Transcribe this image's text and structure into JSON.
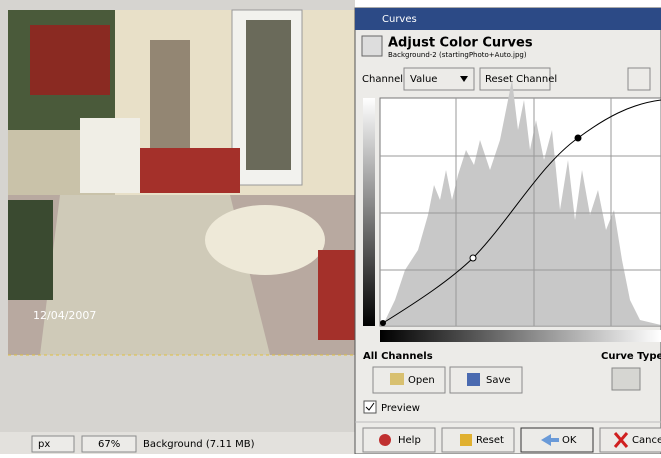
{
  "photo": {
    "date": "12/04/2007"
  },
  "status_bar": {
    "unit": "px",
    "zoom": "67%",
    "layer": "Background (7.11 MB)"
  },
  "dialog": {
    "window_title": "Curves",
    "title": "Adjust Color Curves",
    "subtitle": "Background-2 (startingPhoto+Auto.jpg)",
    "channel_label": "Channel:",
    "channel_value": "Value",
    "reset_channel": "Reset Channel",
    "all_channels": "All Channels",
    "curve_type": "Curve Type",
    "open": "Open",
    "save": "Save",
    "preview": "Preview",
    "buttons": [
      "Help",
      "Reset",
      "OK",
      "Cancel"
    ]
  }
}
